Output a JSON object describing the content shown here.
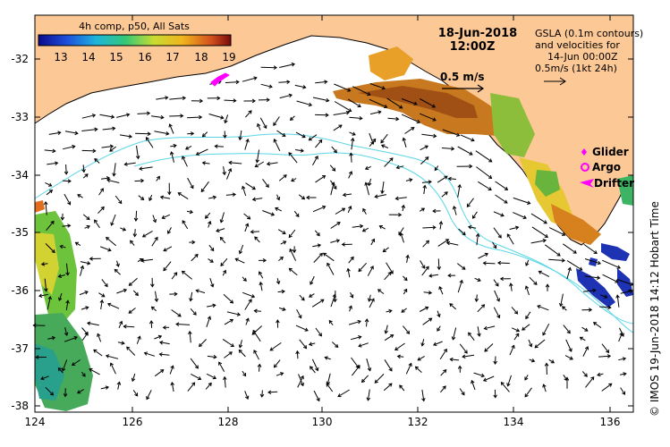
{
  "map": {
    "date": "18-Jun-2018",
    "time": "12:00Z",
    "credit": "© IMOS 19-Jun-2018 14:12 Hobart Time",
    "colors": {
      "land": "#fcc896",
      "ocean": "#ffffff",
      "contour": "#5ad6e6",
      "arrow": "#000000",
      "marker": "#ff00ff"
    }
  },
  "colorbar": {
    "title": "4h comp, p50, All Sats",
    "ticks": [
      "13",
      "14",
      "15",
      "16",
      "17",
      "18",
      "19"
    ]
  },
  "legend": {
    "line1": "GSLA (0.1m contours)",
    "line2": "and velocities for",
    "line3": "14-Jun 00:00Z",
    "line4": "0.5m/s (1kt 24h)",
    "scale_label": "0.5 m/s",
    "glider": "Glider",
    "argo": "Argo",
    "drifter": "Drifter"
  },
  "axes": {
    "x_ticks": [
      "124",
      "126",
      "128",
      "130",
      "132",
      "134",
      "136"
    ],
    "y_ticks": [
      "-32",
      "-33",
      "-34",
      "-35",
      "-36",
      "-37",
      "-38"
    ]
  }
}
